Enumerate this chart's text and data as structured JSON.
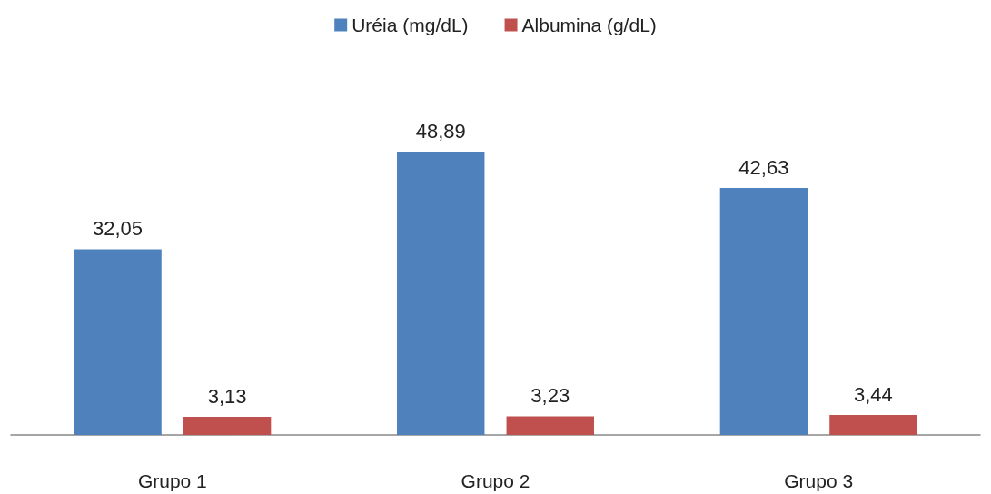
{
  "chart_data": {
    "type": "bar",
    "categories": [
      "Grupo 1",
      "Grupo 2",
      "Grupo 3"
    ],
    "series": [
      {
        "name": "Uréia (mg/dL)",
        "color": "#4f81bd",
        "values": [
          32.05,
          48.89,
          42.63
        ],
        "value_labels": [
          "32,05",
          "48,89",
          "42,63"
        ]
      },
      {
        "name": "Albumina (g/dL)",
        "color": "#c0504d",
        "values": [
          3.13,
          3.23,
          3.44
        ],
        "value_labels": [
          "3,13",
          "3,23",
          "3,44"
        ]
      }
    ],
    "legend": "top",
    "grid": false
  }
}
